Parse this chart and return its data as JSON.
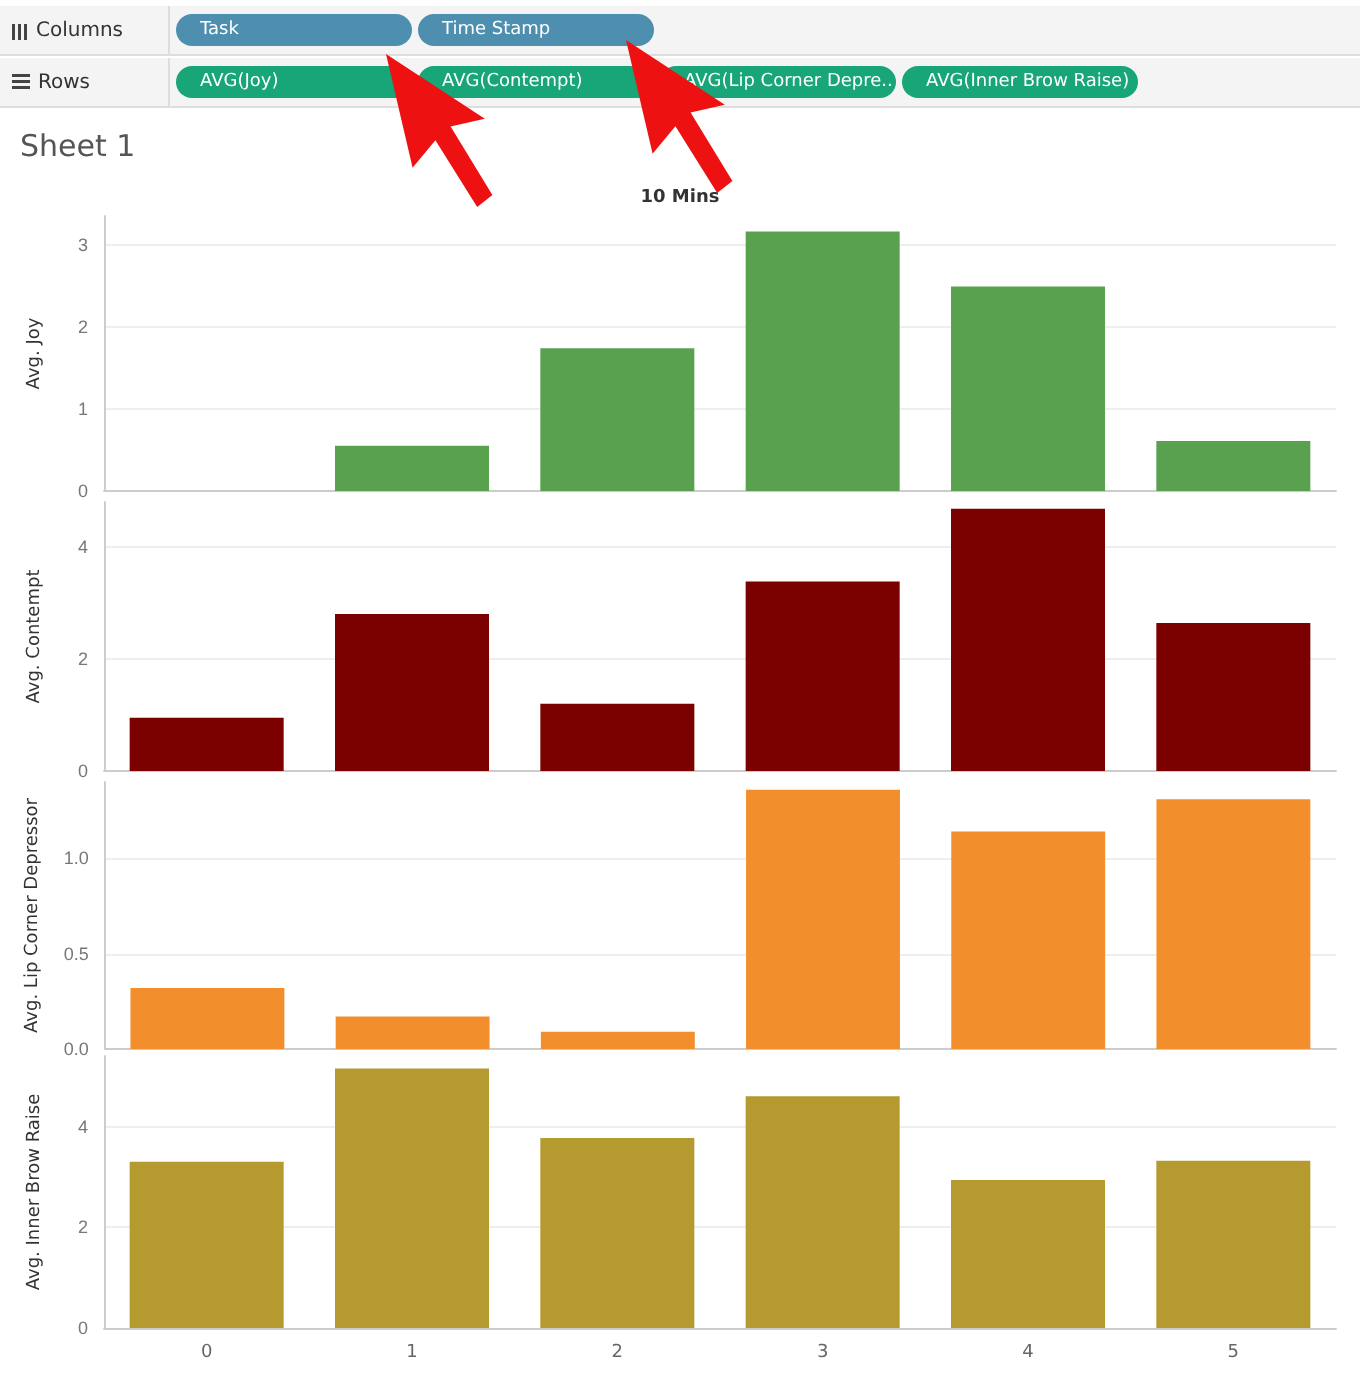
{
  "chart_data": [
    {
      "type": "bar",
      "title": "Sheet 1",
      "subtitle": "10 Mins",
      "annotations": [
        "Columns",
        "Task",
        "Time Stamp",
        "Rows",
        "AVG(Joy)",
        "AVG(Contempt)",
        "AVG(Lip Corner Depre..",
        "AVG(Inner Brow Raise)"
      ],
      "categories": [
        "0",
        "1",
        "2",
        "3",
        "4",
        "5"
      ],
      "values": [
        0,
        0.55,
        1.74,
        3.16,
        2.49,
        0.61
      ],
      "color": "#59a14f",
      "ylabel": "Avg. Joy",
      "ylim": [
        0,
        3.35
      ],
      "yticks": [
        0,
        1,
        2,
        3
      ],
      "grid": "y",
      "tick_labels": "y"
    },
    {
      "type": "bar",
      "categories": [
        "0",
        "1",
        "2",
        "3",
        "4",
        "5"
      ],
      "values": [
        0.95,
        2.8,
        1.2,
        3.38,
        4.68,
        2.64
      ],
      "color": "#7b0000",
      "ylabel": "Avg. Contempt",
      "ylim": [
        0,
        4.8
      ],
      "yticks": [
        0,
        2,
        4
      ],
      "grid": "y",
      "tick_labels": "y"
    },
    {
      "type": "bar",
      "categories": [
        "0",
        "1",
        "2",
        "3",
        "4",
        "5"
      ],
      "values": [
        0.32,
        0.17,
        0.09,
        1.36,
        1.14,
        1.31
      ],
      "color": "#f28e2b",
      "ylabel": "Avg. Lip Corner Depressor",
      "ylim": [
        0,
        1.4
      ],
      "yticks": [
        {
          "value": 0,
          "label": "0.0"
        },
        {
          "value": 0.5,
          "label": "0.5"
        },
        {
          "value": 1,
          "label": "1.0"
        }
      ],
      "grid": "y",
      "tick_labels": "y"
    },
    {
      "type": "bar",
      "categories": [
        "0",
        "1",
        "2",
        "3",
        "4",
        "5"
      ],
      "values": [
        3.3,
        5.15,
        3.77,
        4.6,
        2.94,
        3.32
      ],
      "color": "#b59a2f",
      "ylabel": "Avg. Inner Brow Raise",
      "ylim": [
        0,
        5.4
      ],
      "yticks": [
        0,
        2,
        4
      ],
      "grid": "y"
    }
  ]
}
